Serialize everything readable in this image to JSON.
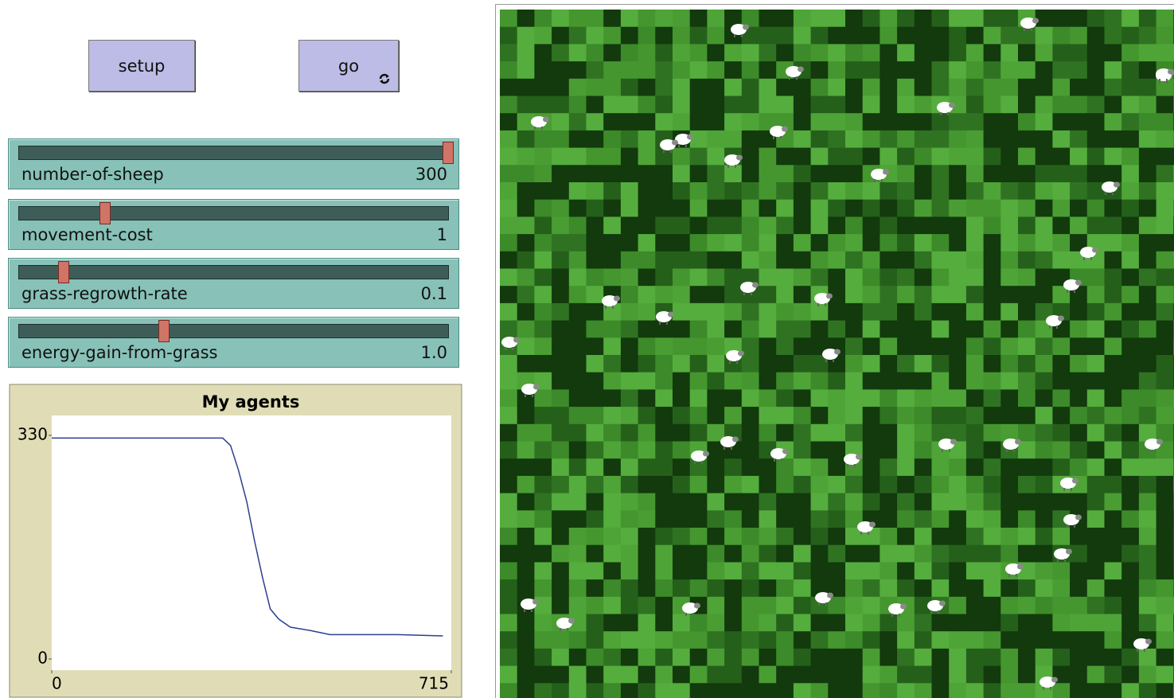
{
  "buttons": [
    {
      "label": "setup"
    },
    {
      "label": "go"
    }
  ],
  "sliders": [
    {
      "name": "number-of-sheep",
      "value": "300"
    },
    {
      "name": "movement-cost",
      "value": "1"
    },
    {
      "name": "grass-regrowth-rate",
      "value": "0.1"
    },
    {
      "name": "energy-gain-from-grass",
      "value": "1.0"
    }
  ],
  "chart_data": {
    "type": "line",
    "title": "My agents",
    "color": "#2b3f8f",
    "x": [
      0,
      306,
      320,
      334,
      349,
      363,
      377,
      391,
      406,
      427,
      463,
      498,
      619,
      700
    ],
    "values": [
      326,
      326,
      315,
      279,
      232,
      174,
      121,
      74,
      59,
      47,
      42,
      36,
      36,
      34
    ],
    "xlim": [
      0,
      715
    ],
    "ylim": [
      0,
      330
    ],
    "xticks": [
      0,
      715
    ],
    "yticks": [
      0,
      330
    ]
  }
}
